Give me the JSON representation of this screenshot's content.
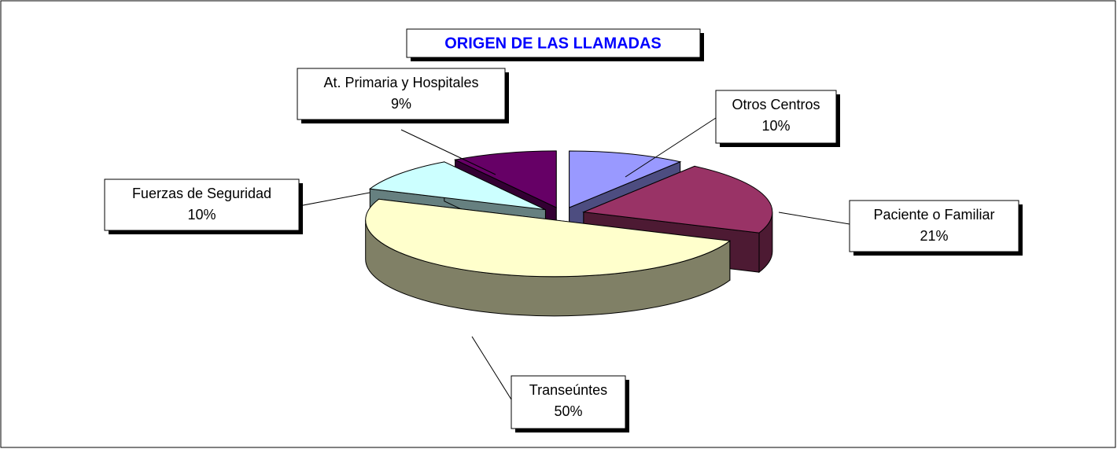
{
  "chart_data": {
    "type": "pie",
    "title": "ORIGEN DE LAS LLAMADAS",
    "categories": [
      "Otros Centros",
      "Paciente o Familiar",
      "Transeúntes",
      "Fuerzas de Seguridad",
      "At. Primaria y Hospitales"
    ],
    "values": [
      10,
      21,
      50,
      10,
      9
    ],
    "value_labels": [
      "10%",
      "21%",
      "50%",
      "10%",
      "9%"
    ],
    "colors": [
      "#9999ff",
      "#993366",
      "#ffffcc",
      "#ccffff",
      "#660066"
    ]
  }
}
